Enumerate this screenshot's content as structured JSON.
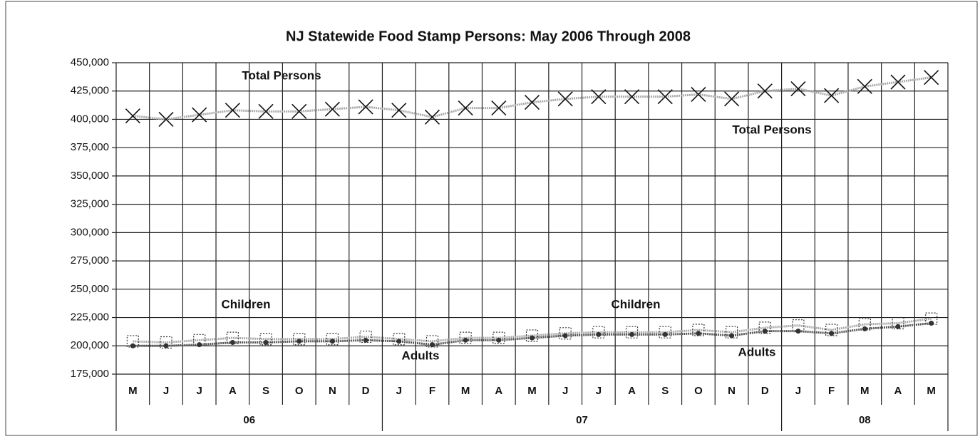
{
  "chart_data": {
    "type": "line",
    "title": "NJ Statewide Food Stamp Persons: May 2006 Through 2008",
    "categories": [
      "M",
      "J",
      "J",
      "A",
      "S",
      "O",
      "N",
      "D",
      "J",
      "F",
      "M",
      "A",
      "M",
      "J",
      "J",
      "A",
      "S",
      "O",
      "N",
      "D",
      "J",
      "F",
      "M",
      "A",
      "M"
    ],
    "groups": [
      {
        "label": "06",
        "count": 8
      },
      {
        "label": "07",
        "count": 12
      },
      {
        "label": "08",
        "count": 5
      }
    ],
    "ylim": [
      175000,
      450000
    ],
    "yticks": [
      {
        "value": 175000,
        "label": "175,000"
      },
      {
        "value": 200000,
        "label": "200,000"
      },
      {
        "value": 225000,
        "label": "225,000"
      },
      {
        "value": 250000,
        "label": "250,000"
      },
      {
        "value": 275000,
        "label": "275,000"
      },
      {
        "value": 300000,
        "label": "300,000"
      },
      {
        "value": 325000,
        "label": "325,000"
      },
      {
        "value": 350000,
        "label": "350,000"
      },
      {
        "value": 375000,
        "label": "375,000"
      },
      {
        "value": 400000,
        "label": "400,000"
      },
      {
        "value": 425000,
        "label": "425,000"
      },
      {
        "value": 450000,
        "label": "450,000"
      }
    ],
    "grid": true,
    "series": [
      {
        "name": "Total Persons",
        "color": "#aaaaaa",
        "marker": "x",
        "values": [
          403000,
          400000,
          404000,
          408000,
          407000,
          407000,
          409000,
          411000,
          408000,
          402000,
          410000,
          410000,
          415000,
          418000,
          420000,
          420000,
          420000,
          422000,
          418000,
          425000,
          427000,
          421000,
          429000,
          433000,
          437000
        ]
      },
      {
        "name": "Children",
        "color": "#aaaaaa",
        "marker": "square",
        "values": [
          204000,
          203000,
          205000,
          207000,
          206000,
          206000,
          206000,
          208000,
          206000,
          204000,
          207000,
          207000,
          209000,
          211000,
          212000,
          212000,
          212000,
          214000,
          212000,
          216000,
          218000,
          214000,
          219000,
          220000,
          224000
        ]
      },
      {
        "name": "Adults",
        "color": "#555555",
        "marker": "dot",
        "values": [
          200000,
          200000,
          201000,
          203000,
          203000,
          204000,
          204000,
          205000,
          204000,
          201000,
          205000,
          205000,
          207000,
          209000,
          210000,
          210000,
          210000,
          211000,
          209000,
          213000,
          213000,
          211000,
          215000,
          217000,
          220000
        ]
      }
    ]
  }
}
